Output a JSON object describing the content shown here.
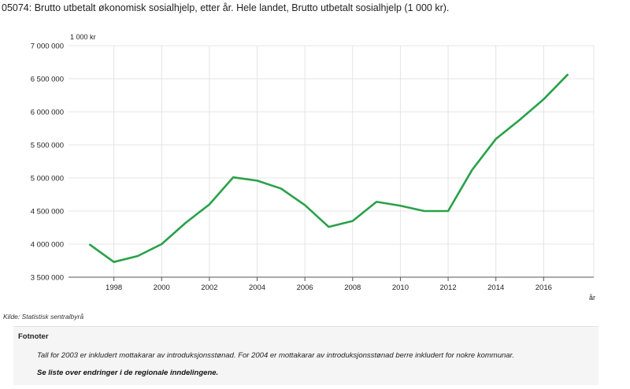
{
  "header": {
    "title": "05074: Brutto utbetalt økonomisk sosialhjelp, etter år. Hele landet, Brutto utbetalt sosialhjelp (1 000 kr)."
  },
  "chart_data": {
    "type": "line",
    "x": [
      1997,
      1998,
      1999,
      2000,
      2001,
      2002,
      2003,
      2004,
      2005,
      2006,
      2007,
      2008,
      2009,
      2010,
      2011,
      2012,
      2013,
      2014,
      2015,
      2016,
      2017
    ],
    "series": [
      {
        "values": [
          3990000,
          3730000,
          3820000,
          4000000,
          4320000,
          4600000,
          5010000,
          4960000,
          4840000,
          4590000,
          4260000,
          4350000,
          4640000,
          4580000,
          4500000,
          4500000,
          5120000,
          5590000,
          5880000,
          6190000,
          6560000
        ],
        "color": "#2aa14a"
      }
    ],
    "xticks": [
      1998,
      2000,
      2002,
      2004,
      2006,
      2008,
      2010,
      2012,
      2014,
      2016
    ],
    "yticks": [
      3500000,
      4000000,
      4500000,
      5000000,
      5500000,
      6000000,
      6500000,
      7000000
    ],
    "ytick_labels": [
      "3 500 000",
      "4 000 000",
      "4 500 000",
      "5 000 000",
      "5 500 000",
      "6 000 000",
      "6 500 000",
      "7 000 000"
    ],
    "xlim": [
      1996.1,
      2018.1
    ],
    "ylim": [
      3500000,
      7000000
    ],
    "ylabel": "1 000 kr",
    "xlabel": "år",
    "grid": true,
    "legend": "none"
  },
  "source": {
    "text": "Kilde:  Statistisk sentralbyrå"
  },
  "footnotes": {
    "heading": "Fotnoter",
    "note": "Tall for 2003 er inkludert mottakarar av introduksjonsstønad. For 2004 er mottakarar av introduksjonsstønad berre inkludert for nokre kommunar.",
    "link_text": "Se liste over endringer i de regionale inndelingene."
  }
}
